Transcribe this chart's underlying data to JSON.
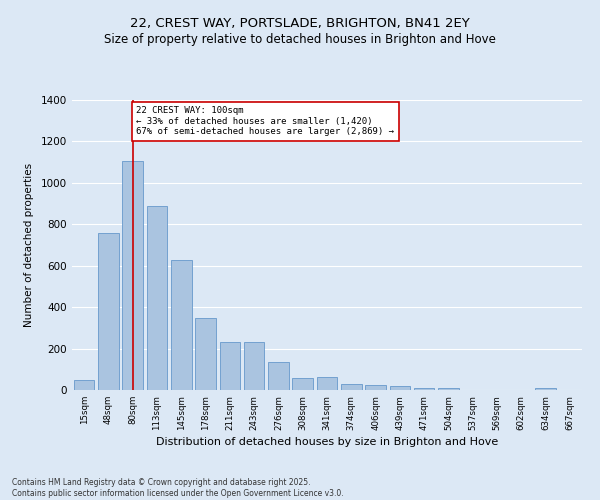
{
  "title1": "22, CREST WAY, PORTSLADE, BRIGHTON, BN41 2EY",
  "title2": "Size of property relative to detached houses in Brighton and Hove",
  "xlabel": "Distribution of detached houses by size in Brighton and Hove",
  "ylabel": "Number of detached properties",
  "categories": [
    "15sqm",
    "48sqm",
    "80sqm",
    "113sqm",
    "145sqm",
    "178sqm",
    "211sqm",
    "243sqm",
    "276sqm",
    "308sqm",
    "341sqm",
    "374sqm",
    "406sqm",
    "439sqm",
    "471sqm",
    "504sqm",
    "537sqm",
    "569sqm",
    "602sqm",
    "634sqm",
    "667sqm"
  ],
  "values": [
    48,
    760,
    1105,
    890,
    630,
    350,
    232,
    232,
    135,
    60,
    62,
    30,
    25,
    18,
    10,
    10,
    2,
    0,
    0,
    10,
    0
  ],
  "bar_color": "#aac4e0",
  "bar_edge_color": "#6699cc",
  "vline_x": 2,
  "vline_color": "#cc0000",
  "annotation_text": "22 CREST WAY: 100sqm\n← 33% of detached houses are smaller (1,420)\n67% of semi-detached houses are larger (2,869) →",
  "annotation_box_color": "#ffffff",
  "annotation_box_edge": "#cc0000",
  "background_color": "#dce8f5",
  "grid_color": "#ffffff",
  "footnote": "Contains HM Land Registry data © Crown copyright and database right 2025.\nContains public sector information licensed under the Open Government Licence v3.0.",
  "ylim": [
    0,
    1400
  ],
  "yticks": [
    0,
    200,
    400,
    600,
    800,
    1000,
    1200,
    1400
  ]
}
